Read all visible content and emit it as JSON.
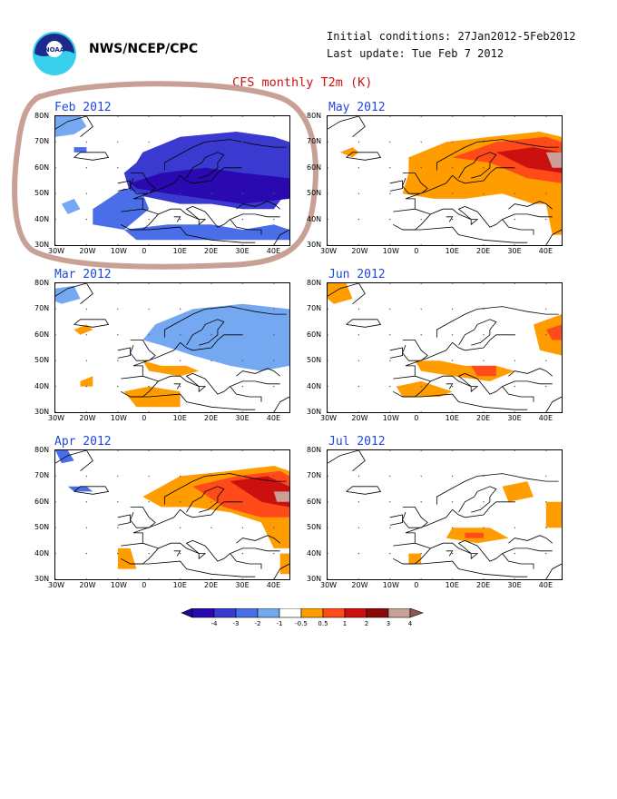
{
  "header": {
    "agency": "NWS/NCEP/CPC",
    "initial_conditions": "Initial conditions: 27Jan2012-5Feb2012",
    "last_update": "Last update: Tue Feb 7 2012",
    "logo_text": "NOAA",
    "title": "CFS monthly T2m (K)"
  },
  "axes": {
    "x_ticks": [
      "30W",
      "20W",
      "10W",
      "0",
      "10E",
      "20E",
      "30E",
      "40E"
    ],
    "y_ticks": [
      "80N",
      "70N",
      "60N",
      "50N",
      "40N",
      "30N"
    ],
    "lon_range": [
      -30,
      45
    ],
    "lat_range": [
      30,
      80
    ]
  },
  "panels": [
    {
      "id": "feb",
      "title": "Feb 2012",
      "circled": true
    },
    {
      "id": "may",
      "title": "May 2012",
      "circled": false
    },
    {
      "id": "mar",
      "title": "Mar 2012",
      "circled": false
    },
    {
      "id": "jun",
      "title": "Jun 2012",
      "circled": false
    },
    {
      "id": "apr",
      "title": "Apr 2012",
      "circled": false
    },
    {
      "id": "jul",
      "title": "Jul 2012",
      "circled": false
    }
  ],
  "legend": {
    "labels": [
      "-4",
      "-3",
      "-2",
      "-1",
      "-0.5",
      "0.5",
      "1",
      "2",
      "3",
      "4"
    ],
    "colors": [
      "#2a0ab0",
      "#3a3ad0",
      "#4a6ee8",
      "#74a8f0",
      "#ffffff",
      "#ff9c00",
      "#ff4a1a",
      "#cc1010",
      "#8a0a0a",
      "#c8a098"
    ],
    "units": "K"
  },
  "colors": {
    "title_red": "#d01010",
    "panel_title_blue": "#2048d8",
    "annotation_circle": "#c8a096"
  }
}
